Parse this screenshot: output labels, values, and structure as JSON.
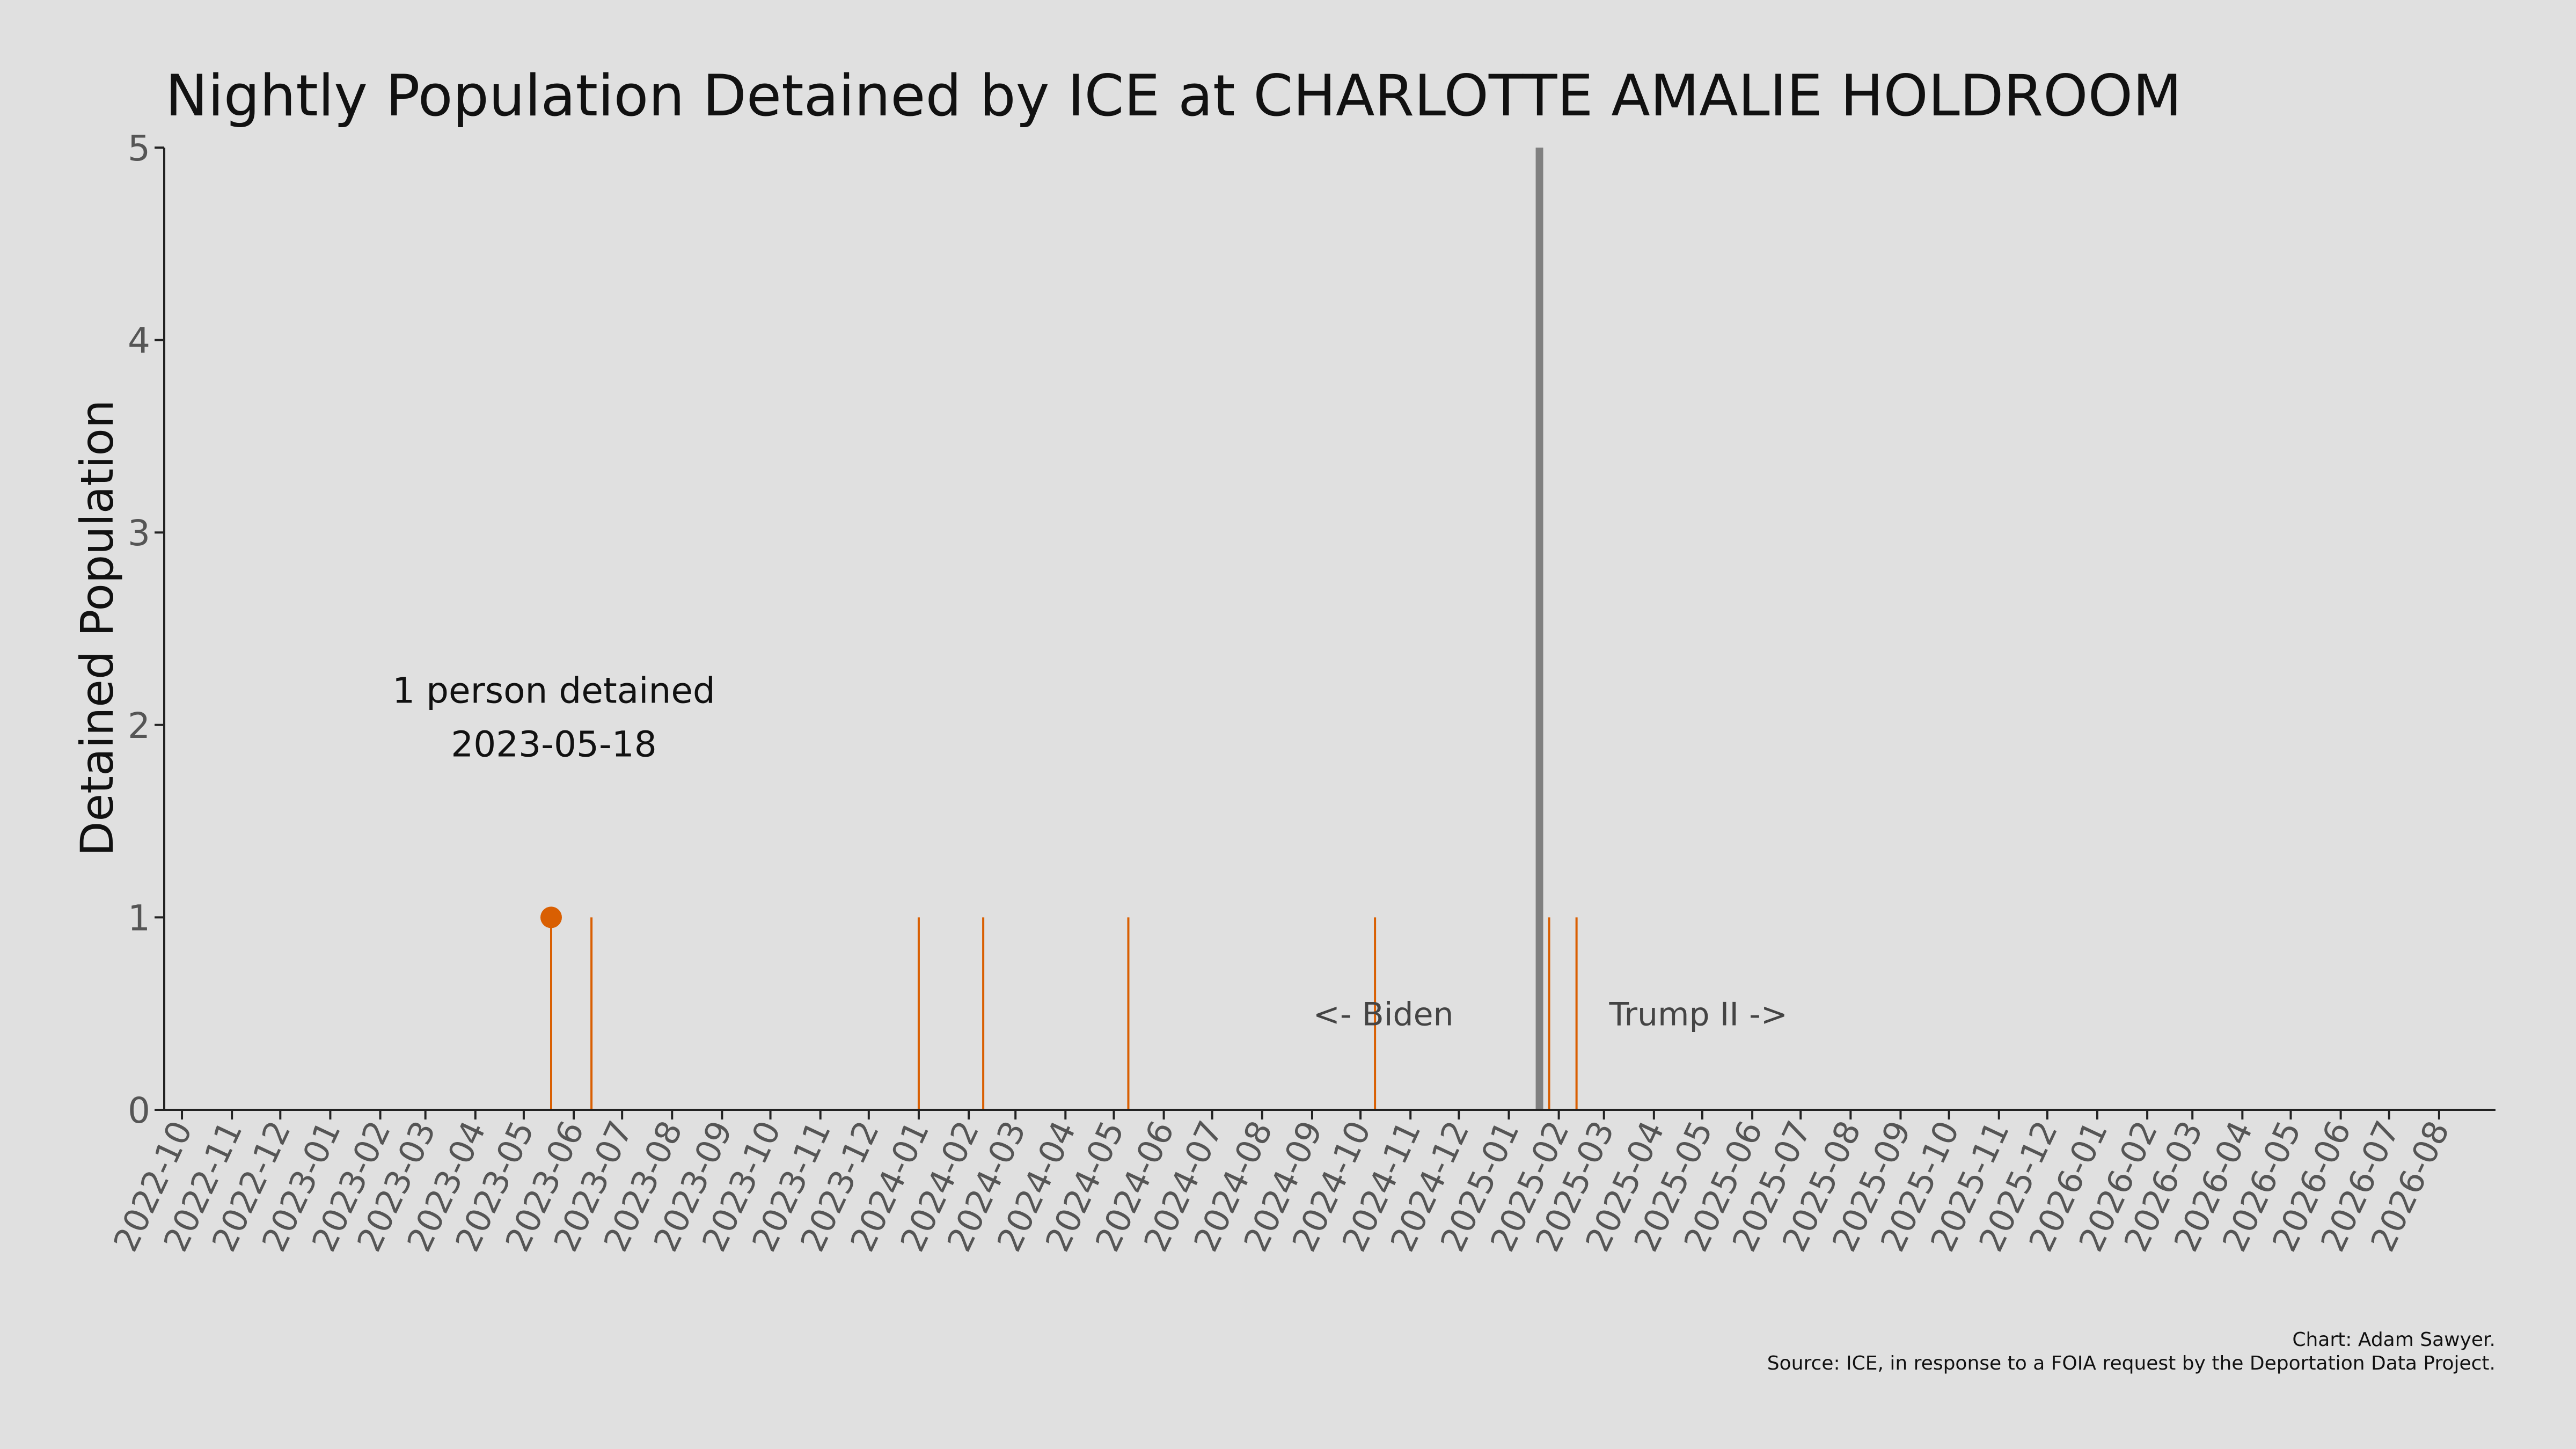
{
  "chart_data": {
    "type": "bar",
    "title": "Nightly Population Detained by ICE at CHARLOTTE AMALIE HOLDROOM",
    "xlabel": "",
    "ylabel": "Detained Population",
    "ylim": [
      0,
      5
    ],
    "yticks": [
      0,
      1,
      2,
      3,
      4,
      5
    ],
    "xlim": [
      "2022-09-20",
      "2026-09-05"
    ],
    "xticks": [
      "2022-10",
      "2022-11",
      "2022-12",
      "2023-01",
      "2023-02",
      "2023-03",
      "2023-04",
      "2023-05",
      "2023-06",
      "2023-07",
      "2023-08",
      "2023-09",
      "2023-10",
      "2023-11",
      "2023-12",
      "2024-01",
      "2024-02",
      "2024-03",
      "2024-04",
      "2024-05",
      "2024-06",
      "2024-07",
      "2024-08",
      "2024-09",
      "2024-10",
      "2024-11",
      "2024-12",
      "2025-01",
      "2025-02",
      "2025-03",
      "2025-04",
      "2025-05",
      "2025-06",
      "2025-07",
      "2025-08",
      "2025-09",
      "2025-10",
      "2025-11",
      "2025-12",
      "2026-01",
      "2026-02",
      "2026-03",
      "2026-04",
      "2026-05",
      "2026-06",
      "2026-07",
      "2026-08"
    ],
    "grid": false,
    "series": [
      {
        "color": "#d95f02",
        "points": [
          {
            "x": "2023-05-18",
            "y": 1
          },
          {
            "x": "2023-06-12",
            "y": 1
          },
          {
            "x": "2024-01-01",
            "y": 1
          },
          {
            "x": "2024-02-10",
            "y": 1
          },
          {
            "x": "2024-05-10",
            "y": 1
          },
          {
            "x": "2024-10-10",
            "y": 1
          },
          {
            "x": "2025-01-26",
            "y": 1
          },
          {
            "x": "2025-02-12",
            "y": 1
          }
        ]
      }
    ],
    "highlight": {
      "x": "2023-05-18",
      "y": 1,
      "label_line1": "1 person detained",
      "label_line2": "2023-05-18",
      "color": "#d95f02"
    },
    "reference_line": {
      "x": "2025-01-20",
      "color": "#808080",
      "left_label": "<- Biden",
      "right_label": "Trump II ->"
    },
    "credit": "Chart: Adam Sawyer.",
    "source": "Source: ICE, in response to a FOIA request by the Deportation Data Project."
  }
}
